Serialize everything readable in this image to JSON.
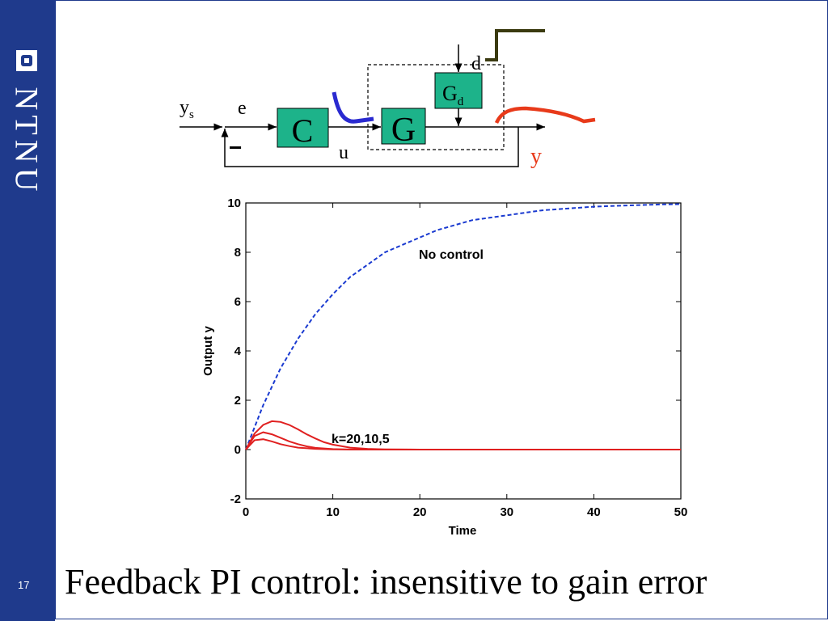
{
  "slide": {
    "number": "17",
    "brand": "NTNU",
    "title": "Feedback PI control: insensitive to gain error"
  },
  "diagram": {
    "setpoint": "y",
    "setpoint_sub": "s",
    "error": "e",
    "minus": "−",
    "controller": "C",
    "input": "u",
    "plant": "G",
    "disturbance_block": "G",
    "disturbance_block_sub": "d",
    "disturbance": "d",
    "output": "y",
    "colors": {
      "block_fill": "#1db38a",
      "input_curve": "#2a2ad0",
      "output_curve": "#e83a1a",
      "disturbance_curve": "#3a3a10"
    }
  },
  "chart_data": {
    "type": "line",
    "xlabel": "Time",
    "ylabel": "Output y",
    "xlim": [
      0,
      50
    ],
    "ylim": [
      -2,
      10
    ],
    "xticks": [
      0,
      10,
      20,
      30,
      40,
      50
    ],
    "yticks": [
      -2,
      0,
      2,
      4,
      6,
      8,
      10
    ],
    "annotations": [
      {
        "text": "No control",
        "x": 20,
        "y": 7.9
      },
      {
        "text": "k=20,10,5",
        "x": 10,
        "y": 0.45
      }
    ],
    "series": [
      {
        "color": "#1a3ad0",
        "style": "dashed",
        "x": [
          0,
          2,
          4,
          6,
          8,
          10,
          12,
          14,
          16,
          18,
          20,
          22,
          24,
          26,
          28,
          30,
          32,
          34,
          36,
          38,
          40,
          42,
          44,
          46,
          48,
          50
        ],
        "y": [
          0,
          1.8,
          3.3,
          4.5,
          5.5,
          6.3,
          7.0,
          7.5,
          8.0,
          8.3,
          8.6,
          8.9,
          9.1,
          9.3,
          9.4,
          9.5,
          9.6,
          9.7,
          9.75,
          9.8,
          9.85,
          9.88,
          9.9,
          9.92,
          9.94,
          9.95
        ]
      },
      {
        "color": "#e02020",
        "style": "solid",
        "x": [
          0,
          1,
          2,
          3,
          4,
          5,
          6,
          7,
          8,
          9,
          10,
          12,
          14,
          16,
          20,
          30,
          50
        ],
        "y": [
          0,
          0.65,
          1.0,
          1.15,
          1.12,
          1.0,
          0.82,
          0.62,
          0.45,
          0.3,
          0.2,
          0.08,
          0.03,
          0.01,
          0,
          0,
          0
        ]
      },
      {
        "color": "#e02020",
        "style": "solid",
        "x": [
          0,
          1,
          2,
          3,
          4,
          5,
          6,
          7,
          8,
          10,
          12,
          20,
          50
        ],
        "y": [
          0,
          0.55,
          0.7,
          0.62,
          0.48,
          0.33,
          0.22,
          0.13,
          0.07,
          0.02,
          0,
          0,
          0
        ]
      },
      {
        "color": "#e02020",
        "style": "solid",
        "x": [
          0,
          1,
          2,
          3,
          4,
          5,
          6,
          8,
          10,
          20,
          50
        ],
        "y": [
          0,
          0.38,
          0.42,
          0.33,
          0.22,
          0.14,
          0.08,
          0.03,
          0.01,
          0,
          0
        ]
      }
    ]
  }
}
